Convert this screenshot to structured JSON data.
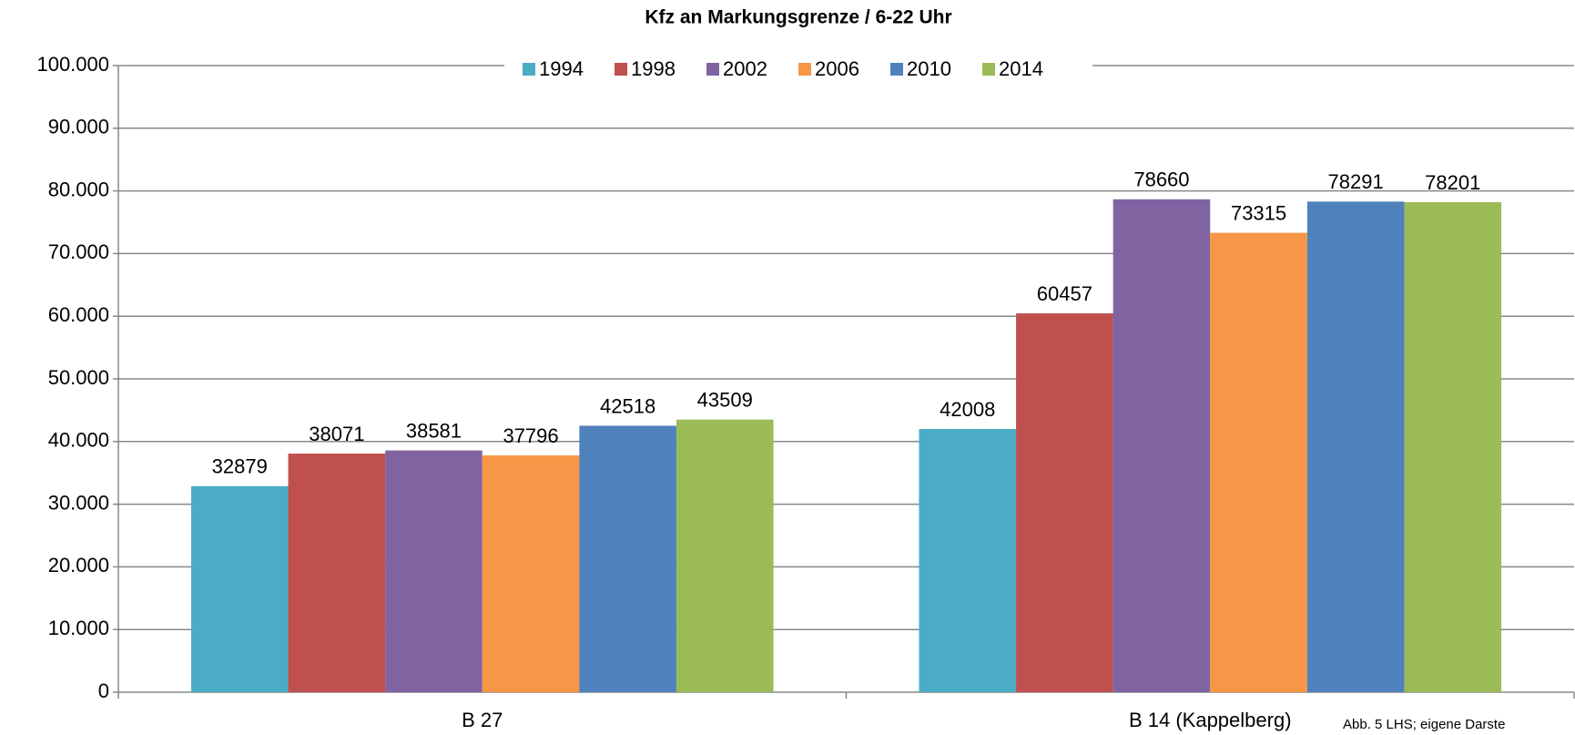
{
  "chart_data": {
    "type": "bar",
    "title": "Kfz an Markungsgrenze / 6-22 Uhr",
    "categories": [
      "B 27",
      "B 14 (Kappelberg)"
    ],
    "series": [
      {
        "name": "1994",
        "color": "#4bacc6",
        "values": [
          32879,
          42008
        ]
      },
      {
        "name": "1998",
        "color": "#c0504d",
        "values": [
          38071,
          60457
        ]
      },
      {
        "name": "2002",
        "color": "#8064a2",
        "values": [
          38581,
          78660
        ]
      },
      {
        "name": "2006",
        "color": "#f79646",
        "values": [
          37796,
          73315
        ]
      },
      {
        "name": "2010",
        "color": "#4f81bd",
        "values": [
          42518,
          78291
        ]
      },
      {
        "name": "2014",
        "color": "#9bbb59",
        "values": [
          43509,
          78201
        ]
      }
    ],
    "ylim": [
      0,
      100000
    ],
    "yticks": [
      0,
      {
        "value": 10000,
        "label": "10.000"
      },
      {
        "value": 20000,
        "label": "20.000"
      },
      {
        "value": 30000,
        "label": "30.000"
      },
      {
        "value": 40000,
        "label": "40.000"
      },
      {
        "value": 50000,
        "label": "50.000"
      },
      {
        "value": 60000,
        "label": "60.000"
      },
      {
        "value": 70000,
        "label": "70.000"
      },
      {
        "value": 80000,
        "label": "80.000"
      },
      {
        "value": 90000,
        "label": "90.000"
      },
      {
        "value": 100000,
        "label": "100.000"
      }
    ],
    "grid": true,
    "legend": "top",
    "annotation": "Abb. 5 LHS; eigene Darste"
  }
}
